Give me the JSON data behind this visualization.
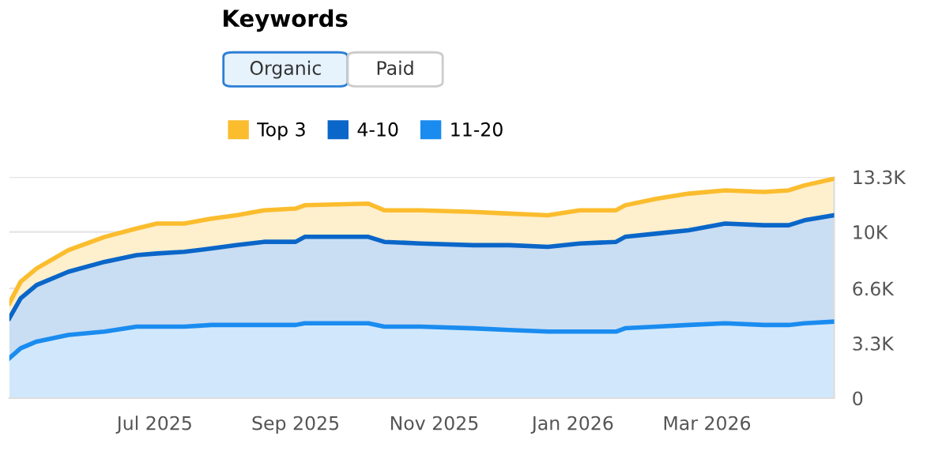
{
  "chart_data": {
    "type": "area",
    "title": "Keywords",
    "annotations": [
      "Organic",
      "Paid"
    ],
    "x": [
      "2025-04-28",
      "2025-05-03",
      "2025-05-10",
      "2025-05-24",
      "2025-06-09",
      "2025-06-23",
      "2025-07-02",
      "2025-07-14",
      "2025-07-26",
      "2025-08-06",
      "2025-08-18",
      "2025-09-01",
      "2025-09-05",
      "2025-10-03",
      "2025-10-10",
      "2025-10-26",
      "2025-11-18",
      "2025-12-04",
      "2025-12-21",
      "2026-01-04",
      "2026-01-20",
      "2026-01-24",
      "2026-02-07",
      "2026-02-21",
      "2026-03-09",
      "2026-03-26",
      "2026-04-06",
      "2026-04-13",
      "2026-04-26"
    ],
    "series": [
      {
        "name": "11-20",
        "color": "#1a8cf0",
        "values": [
          2400,
          3000,
          3400,
          3800,
          4000,
          4300,
          4300,
          4300,
          4400,
          4400,
          4400,
          4400,
          4500,
          4500,
          4300,
          4300,
          4200,
          4100,
          4000,
          4000,
          4000,
          4200,
          4300,
          4400,
          4500,
          4400,
          4400,
          4500,
          4600
        ]
      },
      {
        "name": "4-10",
        "color": "#0a66c8",
        "values": [
          2400,
          3000,
          3400,
          3800,
          4200,
          4300,
          4400,
          4500,
          4600,
          4800,
          5000,
          5000,
          5200,
          5200,
          5100,
          5000,
          5000,
          5100,
          5100,
          5300,
          5400,
          5500,
          5600,
          5700,
          6000,
          6000,
          6000,
          6200,
          6400
        ]
      },
      {
        "name": "Top 3",
        "color": "#fbbd2e",
        "values": [
          900,
          1000,
          1000,
          1300,
          1500,
          1600,
          1800,
          1700,
          1800,
          1800,
          1900,
          2000,
          1900,
          2000,
          1900,
          2000,
          2000,
          1900,
          1900,
          2000,
          1900,
          1900,
          2100,
          2200,
          2000,
          2000,
          2100,
          2100,
          2200
        ]
      }
    ],
    "stacked": true,
    "xlim": [
      "2025-04-28",
      "2026-04-26"
    ],
    "xticks": [
      {
        "value": "2025-07-01",
        "label": "Jul 2025"
      },
      {
        "value": "2025-09-01",
        "label": "Sep 2025"
      },
      {
        "value": "2025-11-01",
        "label": "Nov 2025"
      },
      {
        "value": "2026-01-01",
        "label": "Jan 2026"
      },
      {
        "value": "2026-03-01",
        "label": "Mar 2026"
      }
    ],
    "ylim": [
      0,
      13300
    ],
    "yticks": [
      0,
      {
        "value": 3300,
        "label": "3.3K"
      },
      {
        "value": 6600,
        "label": "6.6K"
      },
      {
        "value": 10000,
        "label": "10K"
      },
      {
        "value": 13300,
        "label": "13.3K"
      }
    ],
    "grid": "y",
    "legend": "top left"
  }
}
